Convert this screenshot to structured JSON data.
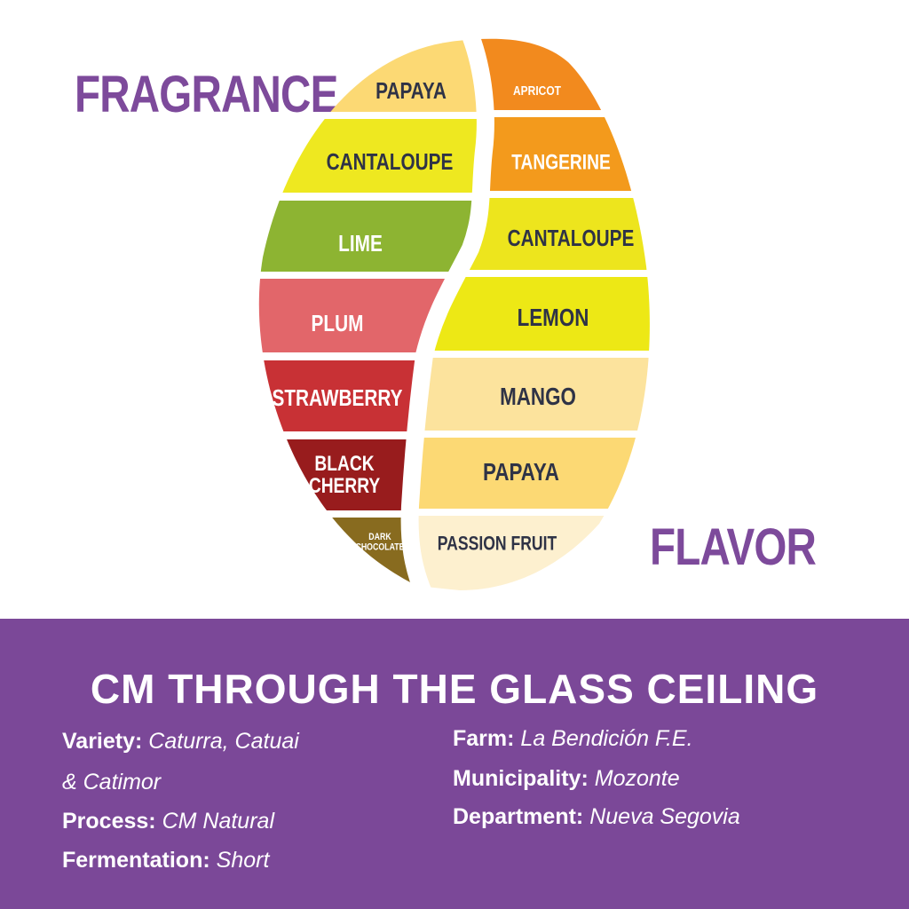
{
  "fragrance_title": "FRAGRANCE",
  "flavor_title": "FLAVOR",
  "fragrance_segments": [
    {
      "lines": [
        "PAPAYA"
      ],
      "fill": "#fcd974",
      "text_color": "#2f3346"
    },
    {
      "lines": [
        "CANTALOUPE"
      ],
      "fill": "#eee820",
      "text_color": "#2f3346"
    },
    {
      "lines": [
        "LIME"
      ],
      "fill": "#8db432",
      "text_color": "#ffffff"
    },
    {
      "lines": [
        "PLUM"
      ],
      "fill": "#e2666a",
      "text_color": "#ffffff"
    },
    {
      "lines": [
        "STRAWBERRY"
      ],
      "fill": "#c83135",
      "text_color": "#ffffff"
    },
    {
      "lines": [
        "BLACK",
        "CHERRY"
      ],
      "fill": "#981c1d",
      "text_color": "#ffffff"
    },
    {
      "lines": [
        "DARK",
        "CHOCOLATE"
      ],
      "fill": "#886b1f",
      "text_color": "#ffffff"
    }
  ],
  "flavor_segments": [
    {
      "lines": [
        "APRICOT"
      ],
      "fill": "#f28a1e",
      "text_color": "#ffffff"
    },
    {
      "lines": [
        "TANGERINE"
      ],
      "fill": "#f39a1c",
      "text_color": "#ffffff"
    },
    {
      "lines": [
        "CANTALOUPE"
      ],
      "fill": "#ede51d",
      "text_color": "#2f3346"
    },
    {
      "lines": [
        "LEMON"
      ],
      "fill": "#ede815",
      "text_color": "#2f3346"
    },
    {
      "lines": [
        "MANGO"
      ],
      "fill": "#fce39d",
      "text_color": "#2f3346"
    },
    {
      "lines": [
        "PAPAYA"
      ],
      "fill": "#fcd974",
      "text_color": "#2f3346"
    },
    {
      "lines": [
        "PASSION FRUIT"
      ],
      "fill": "#fdf0cf",
      "text_color": "#2f3346"
    }
  ],
  "coffee_name": "CM THROUGH THE GLASS CEILING",
  "details_left": [
    {
      "key": "Variety:",
      "value": "Caturra, Catuai"
    },
    {
      "key": "",
      "value": "& Catimor"
    },
    {
      "key": "Process:",
      "value": "CM Natural"
    },
    {
      "key": "Fermentation:",
      "value": "Short"
    }
  ],
  "details_right": [
    {
      "key": "Farm:",
      "value": "La Bendición F.E."
    },
    {
      "key": "Municipality:",
      "value": "Mozonte"
    },
    {
      "key": "Department:",
      "value": "Nueva Segovia"
    }
  ],
  "colors": {
    "brand_purple": "#7b4898",
    "title_purple": "#7d4a9b"
  }
}
